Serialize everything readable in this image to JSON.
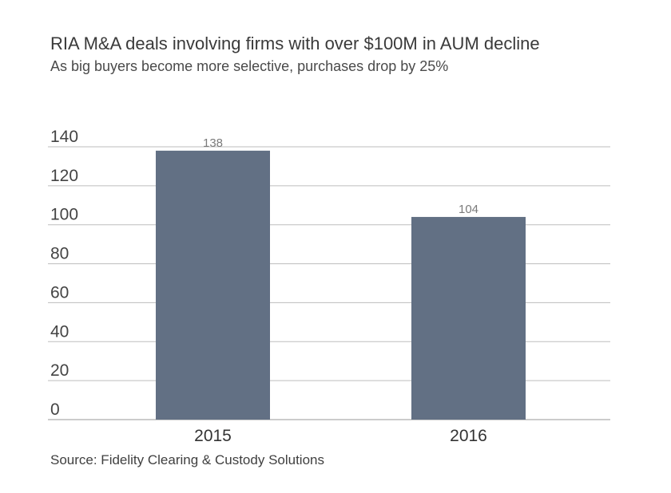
{
  "chart_data": {
    "type": "bar",
    "title": "RIA M&A deals involving firms with over $100M in AUM decline",
    "subtitle": "As big buyers become more selective, purchases drop by 25%",
    "categories": [
      "2015",
      "2016"
    ],
    "values": [
      138,
      104
    ],
    "data_labels": [
      "138",
      "104"
    ],
    "y_ticks": [
      "0",
      "20",
      "40",
      "60",
      "80",
      "100",
      "120",
      "140"
    ],
    "ylim": [
      0,
      140
    ],
    "grid": true,
    "legend": "none",
    "bar_color": "#627084",
    "source": "Source: Fidelity Clearing & Custody Solutions"
  }
}
